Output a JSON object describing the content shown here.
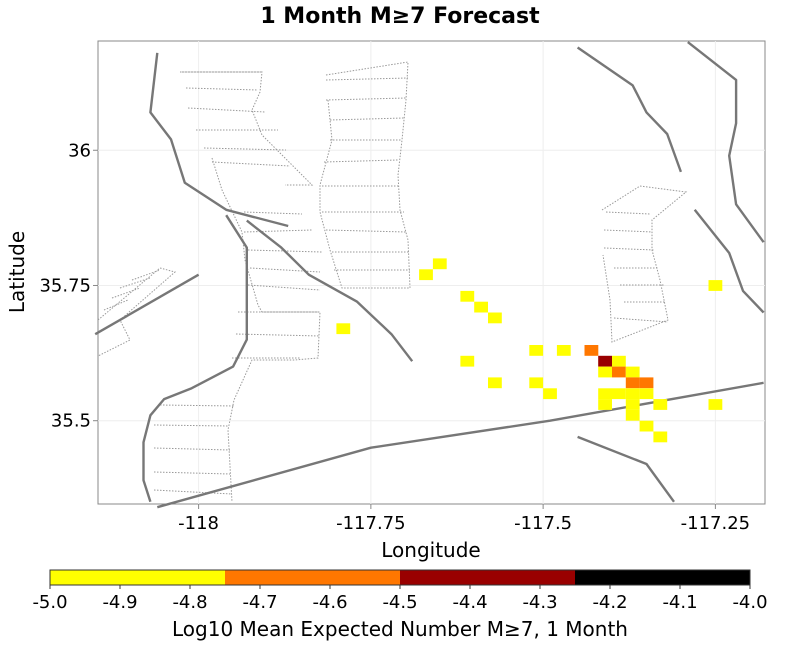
{
  "chart_data": {
    "type": "heatmap",
    "title": "1 Month M≥7 Forecast",
    "xlabel": "Longitude",
    "ylabel": "Latitude",
    "xlim": [
      -118.146,
      -117.178
    ],
    "ylim": [
      35.346,
      36.202
    ],
    "x_ticks": [
      -118,
      -117.75,
      -117.5,
      -117.25
    ],
    "x_tick_labels": [
      "-118",
      "-117.75",
      "-117.5",
      "-117.25"
    ],
    "y_ticks": [
      35.5,
      35.75,
      36
    ],
    "y_tick_labels": [
      "35.5",
      "35.75",
      "36"
    ],
    "grid": true,
    "cell_size_deg": 0.02,
    "cells": [
      {
        "lon": -117.65,
        "lat": 35.79,
        "value": -4.9
      },
      {
        "lon": -117.67,
        "lat": 35.77,
        "value": -4.9
      },
      {
        "lon": -117.61,
        "lat": 35.73,
        "value": -4.9
      },
      {
        "lon": -117.59,
        "lat": 35.71,
        "value": -4.9
      },
      {
        "lon": -117.57,
        "lat": 35.69,
        "value": -4.9
      },
      {
        "lon": -117.25,
        "lat": 35.75,
        "value": -4.9
      },
      {
        "lon": -117.79,
        "lat": 35.67,
        "value": -4.9
      },
      {
        "lon": -117.61,
        "lat": 35.61,
        "value": -4.9
      },
      {
        "lon": -117.51,
        "lat": 35.63,
        "value": -4.9
      },
      {
        "lon": -117.47,
        "lat": 35.63,
        "value": -4.9
      },
      {
        "lon": -117.43,
        "lat": 35.63,
        "value": -4.6
      },
      {
        "lon": -117.41,
        "lat": 35.61,
        "value": -4.4
      },
      {
        "lon": -117.39,
        "lat": 35.61,
        "value": -4.9
      },
      {
        "lon": -117.41,
        "lat": 35.59,
        "value": -4.9
      },
      {
        "lon": -117.39,
        "lat": 35.59,
        "value": -4.6
      },
      {
        "lon": -117.37,
        "lat": 35.59,
        "value": -4.9
      },
      {
        "lon": -117.37,
        "lat": 35.57,
        "value": -4.6
      },
      {
        "lon": -117.35,
        "lat": 35.57,
        "value": -4.6
      },
      {
        "lon": -117.57,
        "lat": 35.57,
        "value": -4.9
      },
      {
        "lon": -117.51,
        "lat": 35.57,
        "value": -4.9
      },
      {
        "lon": -117.49,
        "lat": 35.55,
        "value": -4.9
      },
      {
        "lon": -117.41,
        "lat": 35.55,
        "value": -4.9
      },
      {
        "lon": -117.39,
        "lat": 35.55,
        "value": -4.9
      },
      {
        "lon": -117.37,
        "lat": 35.55,
        "value": -4.9
      },
      {
        "lon": -117.35,
        "lat": 35.55,
        "value": -4.9
      },
      {
        "lon": -117.41,
        "lat": 35.53,
        "value": -4.9
      },
      {
        "lon": -117.37,
        "lat": 35.53,
        "value": -4.9
      },
      {
        "lon": -117.33,
        "lat": 35.53,
        "value": -4.9
      },
      {
        "lon": -117.25,
        "lat": 35.53,
        "value": -4.9
      },
      {
        "lon": -117.37,
        "lat": 35.51,
        "value": -4.9
      },
      {
        "lon": -117.35,
        "lat": 35.49,
        "value": -4.9
      },
      {
        "lon": -117.33,
        "lat": 35.47,
        "value": -4.9
      }
    ],
    "faults": [
      {
        "name": "solid",
        "points": [
          [
            -118.06,
            36.18
          ],
          [
            -118.07,
            36.07
          ],
          [
            -118.04,
            36.02
          ],
          [
            -118.02,
            35.94
          ],
          [
            -117.96,
            35.89
          ],
          [
            -117.87,
            35.86
          ]
        ]
      },
      {
        "name": "solid",
        "points": [
          [
            -117.96,
            35.88
          ],
          [
            -117.93,
            35.82
          ],
          [
            -117.93,
            35.65
          ],
          [
            -117.95,
            35.6
          ],
          [
            -118.01,
            35.56
          ],
          [
            -118.05,
            35.54
          ],
          [
            -118.07,
            35.51
          ],
          [
            -118.08,
            35.46
          ],
          [
            -118.08,
            35.39
          ],
          [
            -118.07,
            35.35
          ]
        ]
      },
      {
        "name": "solid",
        "points": [
          [
            -117.93,
            35.87
          ],
          [
            -117.88,
            35.82
          ],
          [
            -117.84,
            35.77
          ],
          [
            -117.77,
            35.72
          ],
          [
            -117.72,
            35.66
          ],
          [
            -117.69,
            35.61
          ]
        ]
      },
      {
        "name": "solid",
        "points": [
          [
            -118.06,
            35.34
          ],
          [
            -117.75,
            35.45
          ],
          [
            -117.49,
            35.5
          ],
          [
            -117.18,
            35.57
          ]
        ]
      },
      {
        "name": "solid",
        "points": [
          [
            -117.45,
            36.19
          ],
          [
            -117.37,
            36.12
          ],
          [
            -117.35,
            36.07
          ],
          [
            -117.32,
            36.03
          ],
          [
            -117.3,
            35.96
          ]
        ]
      },
      {
        "name": "solid",
        "points": [
          [
            -117.29,
            36.2
          ],
          [
            -117.22,
            36.13
          ],
          [
            -117.22,
            36.05
          ],
          [
            -117.23,
            35.99
          ],
          [
            -117.22,
            35.9
          ],
          [
            -117.18,
            35.83
          ]
        ]
      },
      {
        "name": "solid",
        "points": [
          [
            -117.28,
            35.89
          ],
          [
            -117.23,
            35.81
          ],
          [
            -117.21,
            35.74
          ],
          [
            -117.18,
            35.7
          ]
        ]
      },
      {
        "name": "solid",
        "points": [
          [
            -117.45,
            35.47
          ],
          [
            -117.35,
            35.42
          ],
          [
            -117.31,
            35.35
          ]
        ]
      },
      {
        "name": "solid",
        "points": [
          [
            -118.15,
            35.66
          ],
          [
            -118.0,
            35.77
          ]
        ]
      }
    ],
    "colorbar": {
      "label": "Log10 Mean Expected Number M≥7, 1 Month",
      "min": -5.0,
      "max": -4.0,
      "ticks": [
        "-5.0",
        "-4.9",
        "-4.8",
        "-4.7",
        "-4.6",
        "-4.5",
        "-4.4",
        "-4.3",
        "-4.2",
        "-4.1",
        "-4.0"
      ],
      "bands": [
        {
          "from": -5.0,
          "to": -4.75,
          "color": "#ffff00"
        },
        {
          "from": -4.75,
          "to": -4.5,
          "color": "#ff7700"
        },
        {
          "from": -4.5,
          "to": -4.25,
          "color": "#990000"
        },
        {
          "from": -4.25,
          "to": -4.0,
          "color": "#000000"
        }
      ]
    }
  }
}
